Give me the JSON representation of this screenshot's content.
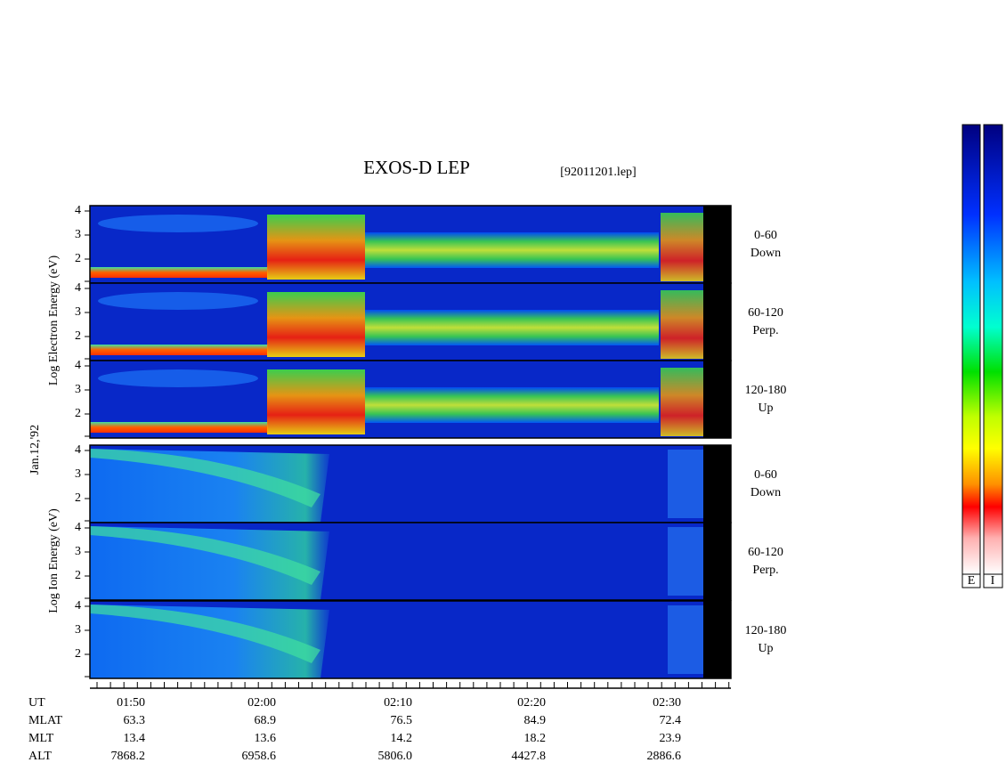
{
  "header": {
    "title": "EXOS-D LEP",
    "file": "[92011201.lep]"
  },
  "date": "Jan.12,'92",
  "electron": {
    "axis_label": "Log  Electron  Energy (eV)",
    "panels": [
      {
        "ticks": [
          "4",
          "3",
          "2"
        ],
        "pitch": "0-60",
        "direction": "Down"
      },
      {
        "ticks": [
          "4",
          "3",
          "2"
        ],
        "pitch": "60-120",
        "direction": "Perp."
      },
      {
        "ticks": [
          "4",
          "3",
          "2"
        ],
        "pitch": "120-180",
        "direction": "Up"
      }
    ]
  },
  "ion": {
    "axis_label": "Log  Ion  Energy (eV)",
    "panels": [
      {
        "ticks": [
          "4",
          "3",
          "2"
        ],
        "pitch": "0-60",
        "direction": "Down"
      },
      {
        "ticks": [
          "4",
          "3",
          "2"
        ],
        "pitch": "60-120",
        "direction": "Perp."
      },
      {
        "ticks": [
          "4",
          "3",
          "2"
        ],
        "pitch": "120-180",
        "direction": "Up"
      }
    ]
  },
  "time_axis": {
    "rows": [
      {
        "label": "UT",
        "values": [
          "01:50",
          "02:00",
          "02:10",
          "02:20",
          "02:30"
        ]
      },
      {
        "label": "MLAT",
        "values": [
          "63.3",
          "68.9",
          "76.5",
          "84.9",
          "72.4"
        ]
      },
      {
        "label": "MLT",
        "values": [
          "13.4",
          "13.6",
          "14.2",
          "18.2",
          "23.9"
        ]
      },
      {
        "label": "ALT",
        "values": [
          "7868.2",
          "6958.6",
          "5806.0",
          "4427.8",
          "2886.6"
        ]
      }
    ]
  },
  "colorbar": {
    "labels": [
      "E",
      "I"
    ]
  }
}
